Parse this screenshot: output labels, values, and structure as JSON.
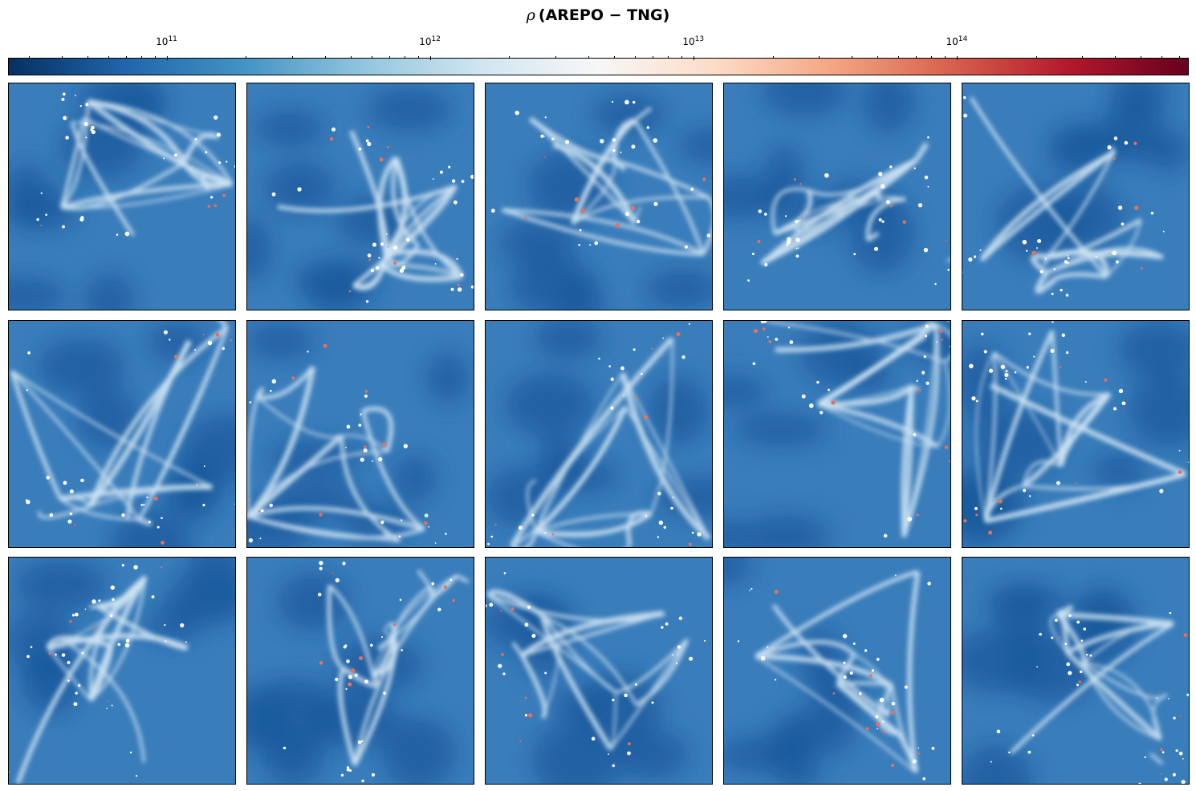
{
  "title": {
    "symbol": "ρ",
    "text": "(AREPO − TNG)"
  },
  "colorbar": {
    "colormap": "RdBu_r",
    "scale": "log",
    "range": [
      25000000000.0,
      750000000000000.0
    ],
    "stops": [
      "#053061",
      "#2166ac",
      "#4393c3",
      "#92c5de",
      "#d1e5f0",
      "#f7f7f7",
      "#fddbc7",
      "#f4a582",
      "#d6604d",
      "#b2182b",
      "#67001f"
    ],
    "tick_labels": [
      {
        "base": "10",
        "exp": "11"
      },
      {
        "base": "10",
        "exp": "12"
      },
      {
        "base": "10",
        "exp": "13"
      },
      {
        "base": "10",
        "exp": "14"
      }
    ]
  },
  "grid": {
    "rows": 3,
    "cols": 5
  },
  "panel_count": 15
}
